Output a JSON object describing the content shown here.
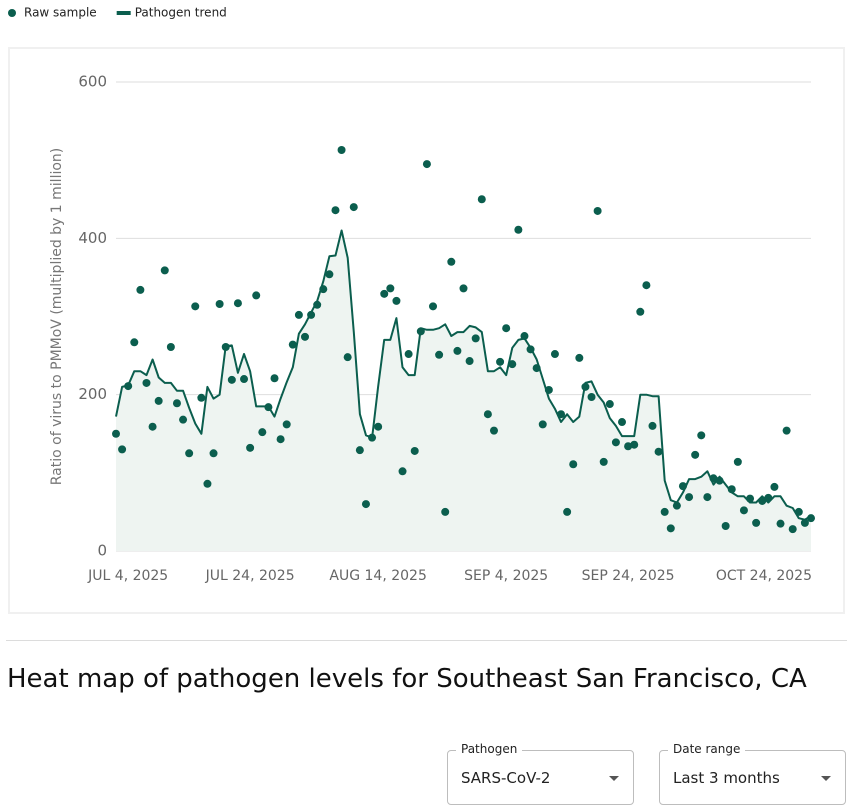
{
  "chart_data": {
    "type": "line",
    "ylabel": "Ratio of virus to PMMoV (multiplied by 1 million)",
    "x": [
      "2025-07-02",
      "2025-07-03",
      "2025-07-04",
      "2025-07-05",
      "2025-07-06",
      "2025-07-07",
      "2025-07-08",
      "2025-07-09",
      "2025-07-10",
      "2025-07-11",
      "2025-07-12",
      "2025-07-13",
      "2025-07-14",
      "2025-07-15",
      "2025-07-16",
      "2025-07-17",
      "2025-07-18",
      "2025-07-19",
      "2025-07-20",
      "2025-07-21",
      "2025-07-22",
      "2025-07-23",
      "2025-07-24",
      "2025-07-25",
      "2025-07-26",
      "2025-07-27",
      "2025-07-28",
      "2025-07-29",
      "2025-07-30",
      "2025-07-31",
      "2025-08-01",
      "2025-08-02",
      "2025-08-03",
      "2025-08-04",
      "2025-08-05",
      "2025-08-06",
      "2025-08-07",
      "2025-08-08",
      "2025-08-09",
      "2025-08-10",
      "2025-08-11",
      "2025-08-12",
      "2025-08-13",
      "2025-08-14",
      "2025-08-15",
      "2025-08-16",
      "2025-08-17",
      "2025-08-18",
      "2025-08-19",
      "2025-08-20",
      "2025-08-21",
      "2025-08-22",
      "2025-08-23",
      "2025-08-24",
      "2025-08-25",
      "2025-08-26",
      "2025-08-27",
      "2025-08-28",
      "2025-08-29",
      "2025-08-30",
      "2025-08-31",
      "2025-09-01",
      "2025-09-02",
      "2025-09-03",
      "2025-09-04",
      "2025-09-05",
      "2025-09-06",
      "2025-09-07",
      "2025-09-08",
      "2025-09-09",
      "2025-09-10",
      "2025-09-11",
      "2025-09-12",
      "2025-09-13",
      "2025-09-14",
      "2025-09-15",
      "2025-09-16",
      "2025-09-17",
      "2025-09-18",
      "2025-09-19",
      "2025-09-20",
      "2025-09-21",
      "2025-09-22",
      "2025-09-23",
      "2025-09-24",
      "2025-09-25",
      "2025-09-26",
      "2025-09-27",
      "2025-09-28",
      "2025-09-29",
      "2025-09-30",
      "2025-10-01",
      "2025-10-02",
      "2025-10-03",
      "2025-10-04",
      "2025-10-05",
      "2025-10-06",
      "2025-10-07",
      "2025-10-08",
      "2025-10-09",
      "2025-10-10",
      "2025-10-11",
      "2025-10-12",
      "2025-10-13",
      "2025-10-14",
      "2025-10-15",
      "2025-10-16",
      "2025-10-17",
      "2025-10-18",
      "2025-10-19",
      "2025-10-20",
      "2025-10-21",
      "2025-10-22",
      "2025-10-23",
      "2025-10-24"
    ],
    "series": [
      {
        "name": "Raw sample",
        "type": "scatter",
        "color": "#0b5e4e",
        "values": [
          150,
          130,
          211,
          267,
          334,
          215,
          159,
          192,
          359,
          261,
          189,
          168,
          125,
          313,
          196,
          86,
          125,
          316,
          261,
          219,
          317,
          220,
          132,
          327,
          152,
          184,
          221,
          143,
          162,
          264,
          302,
          274,
          302,
          315,
          335,
          354,
          436,
          513,
          248,
          440,
          129,
          60,
          145,
          159,
          329,
          336,
          320,
          102,
          252,
          128,
          281,
          495,
          313,
          251,
          50,
          370,
          256,
          336,
          243,
          272,
          450,
          175,
          154,
          242,
          285,
          239,
          411,
          275,
          258,
          234,
          162,
          206,
          252,
          175,
          50,
          111,
          247,
          210,
          197,
          435,
          114,
          188,
          139,
          165,
          134,
          136,
          306,
          340,
          160,
          127,
          50,
          29,
          58,
          83,
          69,
          123,
          148,
          69,
          93,
          90,
          32,
          79,
          114,
          52,
          67,
          36,
          64,
          68,
          82,
          35,
          154,
          28,
          50,
          36,
          42
        ]
      },
      {
        "name": "Pathogen trend",
        "type": "line",
        "color": "#0b5e4e",
        "area_color": "#eef4f1",
        "values": [
          172,
          210,
          212,
          230,
          230,
          225,
          245,
          222,
          215,
          215,
          205,
          205,
          183,
          163,
          150,
          210,
          195,
          200,
          262,
          263,
          228,
          252,
          230,
          185,
          185,
          185,
          172,
          195,
          216,
          235,
          278,
          290,
          305,
          320,
          345,
          377,
          378,
          410,
          375,
          280,
          175,
          148,
          145,
          210,
          270,
          270,
          298,
          235,
          225,
          225,
          285,
          283,
          283,
          285,
          290,
          275,
          280,
          280,
          288,
          286,
          280,
          230,
          230,
          235,
          225,
          260,
          270,
          272,
          260,
          245,
          220,
          195,
          182,
          165,
          175,
          165,
          172,
          215,
          217,
          200,
          190,
          170,
          160,
          147,
          147,
          147,
          200,
          200,
          198,
          198,
          90,
          65,
          62,
          75,
          92,
          92,
          95,
          102,
          85,
          95,
          85,
          75,
          70,
          70,
          62,
          62,
          70,
          62,
          70,
          70,
          58,
          55,
          42,
          40,
          45
        ]
      }
    ],
    "xlim": [
      "2025-07-02",
      "2025-10-24"
    ],
    "xticks": [
      {
        "value": "2025-07-04",
        "label": "JUL 4, 2025"
      },
      {
        "value": "2025-07-24",
        "label": "JUL 24, 2025"
      },
      {
        "value": "2025-08-14",
        "label": "AUG 14, 2025"
      },
      {
        "value": "2025-09-04",
        "label": "SEP 4, 2025"
      },
      {
        "value": "2025-09-24",
        "label": "SEP 24, 2025"
      },
      {
        "value": "2025-10-24",
        "label": "OCT 24, 2025"
      }
    ],
    "ylim": [
      0,
      600
    ],
    "yticks": [
      0,
      200,
      400,
      600
    ],
    "grid": true
  },
  "heading": "Heat map of pathogen levels for Southeast San Francisco, CA",
  "controls": [
    {
      "label": "Pathogen",
      "value": "SARS-CoV-2"
    },
    {
      "label": "Date range",
      "value": "Last 3 months"
    }
  ]
}
